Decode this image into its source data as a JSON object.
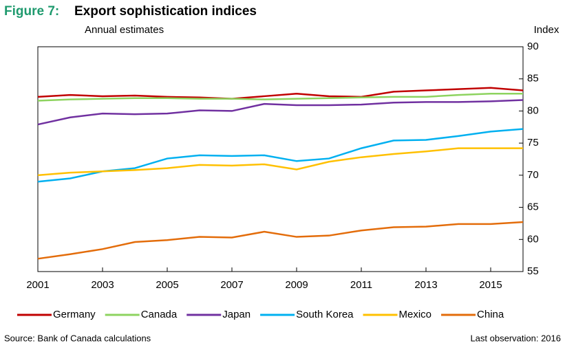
{
  "chart_data": {
    "type": "line",
    "title_prefix": "Figure 7:",
    "title": "Export sophistication indices",
    "subtitle": "Annual estimates",
    "y_label": "Index",
    "x": [
      2001,
      2002,
      2003,
      2004,
      2005,
      2006,
      2007,
      2008,
      2009,
      2010,
      2011,
      2012,
      2013,
      2014,
      2015,
      2016
    ],
    "xlim": [
      2001,
      2016
    ],
    "xticks": [
      2001,
      2003,
      2005,
      2007,
      2009,
      2011,
      2013,
      2015
    ],
    "ylim": [
      55,
      90
    ],
    "yticks": [
      55,
      60,
      65,
      70,
      75,
      80,
      85,
      90
    ],
    "series": [
      {
        "name": "Germany",
        "color": "#c00000",
        "values": [
          82.2,
          82.5,
          82.3,
          82.4,
          82.2,
          82.1,
          81.9,
          82.3,
          82.7,
          82.3,
          82.2,
          83.0,
          83.2,
          83.4,
          83.6,
          83.2
        ]
      },
      {
        "name": "Canada",
        "color": "#8dd35f",
        "values": [
          81.6,
          81.8,
          81.9,
          82.0,
          82.0,
          81.9,
          81.9,
          81.8,
          81.9,
          82.0,
          82.1,
          82.2,
          82.2,
          82.5,
          82.7,
          82.7
        ]
      },
      {
        "name": "Japan",
        "color": "#7030a0",
        "values": [
          77.9,
          79.0,
          79.6,
          79.5,
          79.6,
          80.1,
          80.0,
          81.1,
          80.9,
          80.9,
          81.0,
          81.3,
          81.4,
          81.4,
          81.5,
          81.7
        ]
      },
      {
        "name": "South Korea",
        "color": "#00b0f0",
        "values": [
          69.0,
          69.5,
          70.6,
          71.1,
          72.6,
          73.1,
          73.0,
          73.1,
          72.2,
          72.6,
          74.2,
          75.4,
          75.5,
          76.1,
          76.8,
          77.2
        ]
      },
      {
        "name": "Mexico",
        "color": "#ffc000",
        "values": [
          70.0,
          70.4,
          70.6,
          70.8,
          71.1,
          71.6,
          71.5,
          71.7,
          70.9,
          72.1,
          72.8,
          73.3,
          73.7,
          74.2,
          74.2,
          74.2
        ]
      },
      {
        "name": "China",
        "color": "#e36c0a",
        "values": [
          57.0,
          57.7,
          58.5,
          59.6,
          59.9,
          60.4,
          60.3,
          61.2,
          60.4,
          60.6,
          61.4,
          61.9,
          62.0,
          62.4,
          62.4,
          62.7
        ]
      }
    ],
    "source": "Source: Bank of Canada calculations",
    "note": "Last observation: 2016"
  }
}
